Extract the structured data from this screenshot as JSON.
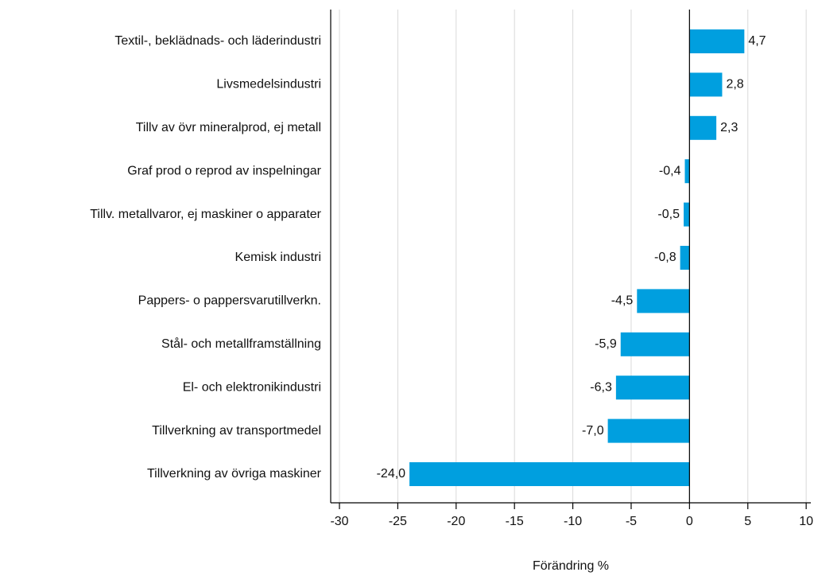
{
  "chart_data": {
    "type": "barh",
    "x_label": "Förändring %",
    "categories": [
      "Textil-, beklädnads- och läderindustri",
      "Livsmedelsindustri",
      "Tillv av övr mineralprod, ej metall",
      "Graf prod o reprod av inspelningar",
      "Tillv. metallvaror, ej maskiner o apparater",
      "Kemisk industri",
      "Pappers- o pappersvarutillverkn.",
      "Stål- och metallframställning",
      "El- och elektronikindustri",
      "Tillverkning av transportmedel",
      "Tillverkning av övriga maskiner"
    ],
    "values": [
      4.7,
      2.8,
      2.3,
      -0.4,
      -0.5,
      -0.8,
      -4.5,
      -5.9,
      -6.3,
      -7.0,
      -24.0
    ],
    "value_labels": [
      "4,7",
      "2,8",
      "2,3",
      "-0,4",
      "-0,5",
      "-0,8",
      "-4,5",
      "-5,9",
      "-6,3",
      "-7,0",
      "-24,0"
    ],
    "color": "#009fdf",
    "xlim": [
      -30.75,
      10.4
    ],
    "xticks": [
      -30,
      -25,
      -20,
      -15,
      -10,
      -5,
      0,
      5,
      10
    ],
    "grid": true
  }
}
